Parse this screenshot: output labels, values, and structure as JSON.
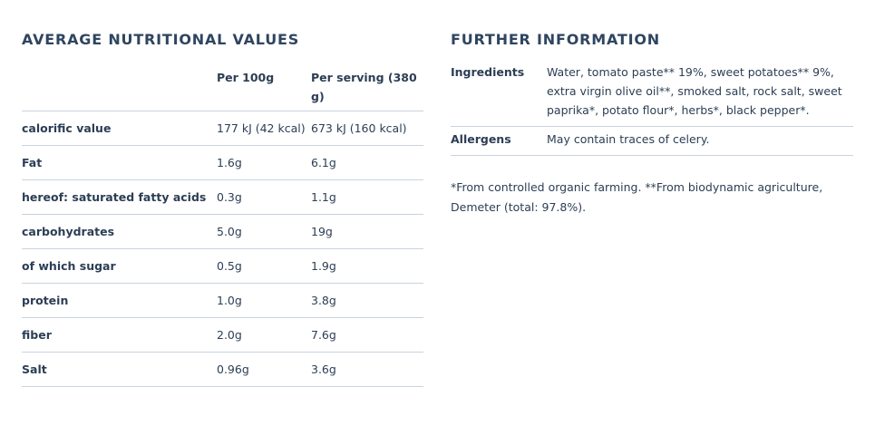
{
  "nutrition": {
    "title": "AVERAGE NUTRITIONAL VALUES",
    "headers": [
      "Per 100g",
      "Per serving (380 g)"
    ],
    "rows": [
      [
        "calorific value",
        "177 kJ (42 kcal)",
        "673 kJ (160 kcal)"
      ],
      [
        "Fat",
        "1.6g",
        "6.1g"
      ],
      [
        "hereof: saturated fatty acids",
        "0.3g",
        "1.1g"
      ],
      [
        "carbohydrates",
        "5.0g",
        "19g"
      ],
      [
        "of which sugar",
        "0.5g",
        "1.9g"
      ],
      [
        "protein",
        "1.0g",
        "3.8g"
      ],
      [
        "fiber",
        "2.0g",
        "7.6g"
      ],
      [
        "Salt",
        "0.96g",
        "3.6g"
      ]
    ]
  },
  "further": {
    "title": "FURTHER INFORMATION",
    "rows": [
      [
        "Ingredients",
        "Water, tomato paste** 19%, sweet potatoes** 9%, extra virgin olive oil**, smoked salt, rock salt, sweet paprika*, potato flour*, herbs*, black pepper*."
      ],
      [
        "Allergens",
        "May contain traces of celery."
      ]
    ],
    "note": "*From controlled organic farming. **From biodynamic agriculture, Demeter (total: 97.8%)."
  }
}
